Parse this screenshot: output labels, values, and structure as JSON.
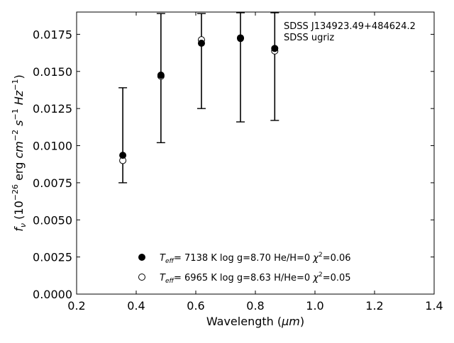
{
  "chart_data": {
    "type": "scatter",
    "xlabel_prefix": "Wavelength (",
    "xlabel_unit": "μm",
    "xlabel_suffix": ")",
    "ylabel_f": "f",
    "ylabel_sub": "ν",
    "ylabel_open": " (10",
    "ylabel_exp1": "−26",
    "ylabel_mid1": " erg ",
    "ylabel_cm": "cm",
    "ylabel_exp2": "−2",
    "ylabel_s": " s",
    "ylabel_exp3": "−1",
    "ylabel_hz": " Hz",
    "ylabel_exp4": "−1",
    "ylabel_close": ")",
    "xlim": [
      0.2,
      1.4
    ],
    "ylim": [
      0.0,
      0.019
    ],
    "x_ticks": [
      "0.2",
      "0.4",
      "0.6",
      "0.8",
      "1.0",
      "1.2",
      "1.4"
    ],
    "y_ticks": [
      "0.0000",
      "0.0025",
      "0.0050",
      "0.0075",
      "0.0100",
      "0.0125",
      "0.0150",
      "0.0175"
    ],
    "annotation": [
      "SDSS J134923.49+484624.2",
      "SDSS ugriz"
    ],
    "observed": {
      "x": [
        0.355,
        0.483,
        0.619,
        0.75,
        0.865
      ],
      "lower": [
        0.0075,
        0.0102,
        0.0125,
        0.0116,
        0.0117
      ],
      "upper": [
        0.0139,
        0.0189,
        0.0189,
        0.019,
        0.019
      ]
    },
    "series": [
      {
        "marker": "filled",
        "values": [
          0.00935,
          0.01475,
          0.0169,
          0.01722,
          0.01655
        ],
        "legend": {
          "t": "T",
          "sub": "eff",
          "eq": "=  7138 K  log g=8.70  He/H=0  ",
          "chi": "χ",
          "sup": "2",
          "end": "=0.06"
        }
      },
      {
        "marker": "open",
        "values": [
          0.009,
          0.01468,
          0.01713,
          0.01726,
          0.01638
        ],
        "legend": {
          "t": "T",
          "sub": "eff",
          "eq": "=  6965 K  log g=8.63  H/He=0  ",
          "chi": "χ",
          "sup": "2",
          "end": "=0.05"
        }
      }
    ],
    "legend_position": "bottom-center"
  }
}
